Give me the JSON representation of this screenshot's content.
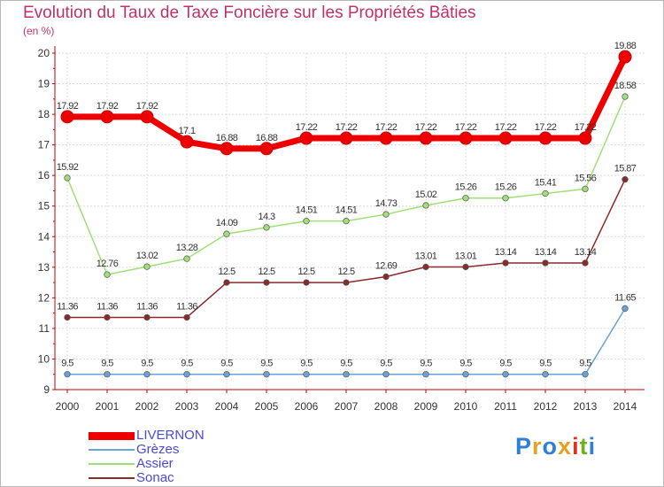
{
  "title": "Evolution du Taux de Taxe Foncière sur les Propriétés Bâties",
  "unit": "(en %)",
  "logo": {
    "text": "Proxiti",
    "colors": [
      "#2f7fd8",
      "#e8a020",
      "#2f7fd8",
      "#e8a020",
      "#e23020",
      "#70b020",
      "#2f7fd8"
    ]
  },
  "chart_data": {
    "type": "line",
    "title": "Evolution du Taux de Taxe Foncière sur les Propriétés Bâties",
    "ylabel": "(en %)",
    "xlabel": "",
    "ylim": [
      9,
      20
    ],
    "yticks": [
      "9",
      "10",
      "11",
      "12",
      "13",
      "14",
      "15",
      "16",
      "17",
      "18",
      "19",
      "20"
    ],
    "categories": [
      "2000",
      "2001",
      "2002",
      "2003",
      "2004",
      "2005",
      "2006",
      "2007",
      "2008",
      "2009",
      "2010",
      "2011",
      "2012",
      "2013",
      "2014"
    ],
    "series": [
      {
        "name": "LIVERNON",
        "color": "#ee0000",
        "bold": true,
        "values": [
          17.92,
          17.92,
          17.92,
          17.1,
          16.88,
          16.88,
          17.22,
          17.22,
          17.22,
          17.22,
          17.22,
          17.22,
          17.22,
          17.22,
          19.88
        ],
        "labels": [
          "17.92",
          "17.92",
          "17.92",
          "17.1",
          "16.88",
          "16.88",
          "17.22",
          "17.22",
          "17.22",
          "17.22",
          "17.22",
          "17.22",
          "17.22",
          "17.22",
          "19.88"
        ]
      },
      {
        "name": "Grèzes",
        "color": "#6aa2d8",
        "values": [
          9.5,
          9.5,
          9.5,
          9.5,
          9.5,
          9.5,
          9.5,
          9.5,
          9.5,
          9.5,
          9.5,
          9.5,
          9.5,
          9.5,
          11.65
        ],
        "labels": [
          "9.5",
          "9.5",
          "9.5",
          "9.5",
          "9.5",
          "9.5",
          "9.5",
          "9.5",
          "9.5",
          "9.5",
          "9.5",
          "9.5",
          "9.5",
          "9.5",
          "11.65"
        ]
      },
      {
        "name": "Assier",
        "color": "#a0df78",
        "values": [
          15.92,
          12.76,
          13.02,
          13.28,
          14.09,
          14.3,
          14.51,
          14.51,
          14.73,
          15.02,
          15.26,
          15.26,
          15.41,
          15.56,
          18.58
        ],
        "labels": [
          "15.92",
          "12.76",
          "13.02",
          "13.28",
          "14.09",
          "14.3",
          "14.51",
          "14.51",
          "14.73",
          "15.02",
          "15.26",
          "15.26",
          "15.41",
          "15.56",
          "18.58"
        ]
      },
      {
        "name": "Sonac",
        "color": "#8a2a2a",
        "values": [
          11.36,
          11.36,
          11.36,
          11.36,
          12.5,
          12.5,
          12.5,
          12.5,
          12.69,
          13.01,
          13.01,
          13.14,
          13.14,
          13.14,
          15.87
        ],
        "labels": [
          "11.36",
          "11.36",
          "11.36",
          "11.36",
          "12.5",
          "12.5",
          "12.5",
          "12.5",
          "12.69",
          "13.01",
          "13.01",
          "13.14",
          "13.14",
          "13.14",
          "15.87"
        ]
      }
    ],
    "legend": "bottom-left",
    "grid": true
  }
}
